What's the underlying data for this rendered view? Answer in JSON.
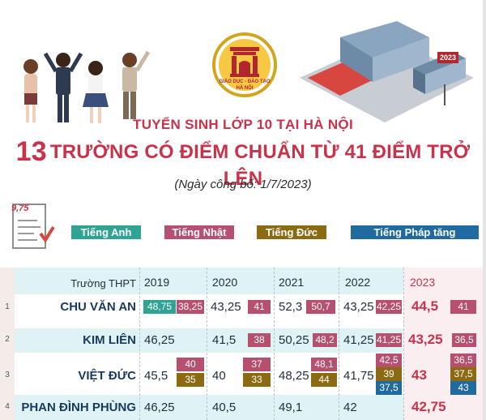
{
  "header": {
    "logo_text_top": "GIÁO DỤC - ĐÀO TẠO",
    "logo_text_bottom": "HÀ NỘI",
    "title_line1": "TUYỂN SINH LỚP 10 TẠI HÀ NỘI",
    "title_number": "13",
    "title_line2": "TRƯỜNG CÓ ĐIỂM CHUẨN TỪ 41 ĐIỂM TRỞ LÊN",
    "date": "(Ngày công bố: 1/7/2023)",
    "doc_icon_score": "9,75",
    "sign_text": "2023"
  },
  "legend": {
    "english": "Tiếng Anh",
    "japanese": "Tiếng Nhật",
    "german": "Tiếng Đức",
    "french": "Tiếng Pháp tăng cường"
  },
  "colors": {
    "english": "#2fa495",
    "japanese": "#b74f6f",
    "german": "#8c6a12",
    "french": "#1f6a9e",
    "title": "#c8324a"
  },
  "table": {
    "school_header": "Trường THPT",
    "years": [
      "2019",
      "2020",
      "2021",
      "2022",
      "2023"
    ],
    "rows": [
      {
        "num": "1",
        "school": "CHU VĂN AN",
        "y2019_tags": [
          "48,75",
          "38,25"
        ],
        "y2020": "43,25",
        "y2020_tag": "41",
        "y2021": "52,3",
        "y2021_tag": "50,7",
        "y2022": "43,25",
        "y2022_tag": "42,25",
        "y2023": "44,5",
        "y2023_tag": "41"
      },
      {
        "num": "2",
        "school": "KIM LIÊN",
        "y2019": "46,25",
        "y2020": "41,5",
        "y2020_tag": "38",
        "y2021": "50,25",
        "y2021_tag": "48,2",
        "y2022": "41,25",
        "y2022_tag": "41,25",
        "y2023": "43,25",
        "y2023_tag": "36,5"
      },
      {
        "num": "3",
        "school": "VIỆT ĐỨC",
        "y2019": "45,5",
        "y2019_tags": [
          "40",
          "35"
        ],
        "y2020": "40",
        "y2020_tags": [
          "37",
          "33"
        ],
        "y2021": "48,25",
        "y2021_tags": [
          "48,1",
          "44"
        ],
        "y2022": "41,75",
        "y2022_tags": [
          "42,5",
          "39",
          "37,5"
        ],
        "y2023": "43",
        "y2023_tags": [
          "36,5",
          "37,5",
          "43"
        ]
      },
      {
        "num": "4",
        "school": "PHAN ĐÌNH PHÙNG",
        "y2019": "46,25",
        "y2020": "40,5",
        "y2021": "49,1",
        "y2022": "42",
        "y2023": "42,75"
      }
    ]
  }
}
